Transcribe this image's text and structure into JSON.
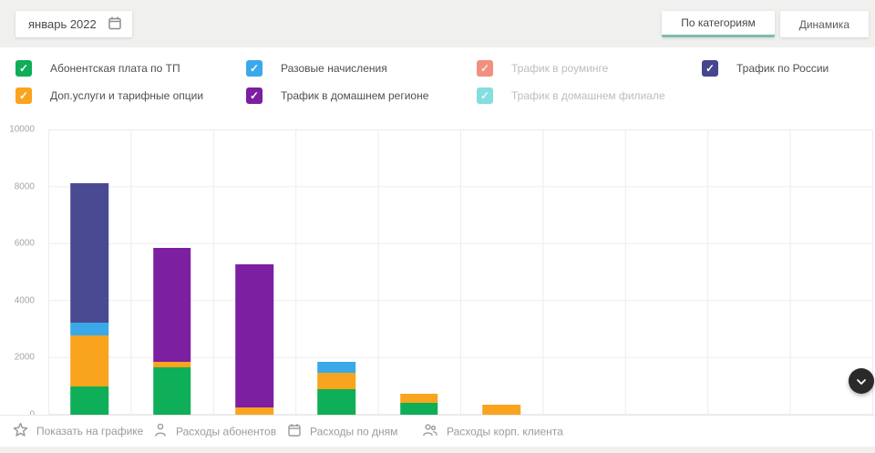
{
  "header": {
    "date_picker": {
      "value": "январь 2022"
    },
    "tabs": [
      {
        "label": "По категориям",
        "active": true
      },
      {
        "label": "Динамика",
        "active": false
      }
    ],
    "active_tab_underline_color": "#7dbcab"
  },
  "legend": {
    "items": [
      {
        "label": "Абонентская плата по ТП",
        "color": "#0fae58",
        "checked": true,
        "disabled": false
      },
      {
        "label": "Разовые начисления",
        "color": "#3aa9e9",
        "checked": true,
        "disabled": false
      },
      {
        "label": "Трафик в роуминге",
        "color": "#f0907e",
        "checked": true,
        "disabled": true
      },
      {
        "label": "Трафик по России",
        "color": "#454590",
        "checked": true,
        "disabled": false
      },
      {
        "label": "Доп.услуги и тарифные опции",
        "color": "#f9a41f",
        "checked": true,
        "disabled": false
      },
      {
        "label": "Трафик в домашнем регионе",
        "color": "#7c1fa0",
        "checked": true,
        "disabled": false
      },
      {
        "label": "Трафик в домашнем филиале",
        "color": "#85dede",
        "checked": true,
        "disabled": true
      }
    ]
  },
  "chart_data": {
    "type": "bar",
    "stacked": true,
    "categories": [
      "",
      "",
      "",
      "",
      "",
      ""
    ],
    "x_labels_visible": false,
    "num_grid_columns": 10,
    "series": [
      {
        "name": "Абонентская плата по ТП",
        "color": "#0fae58",
        "values": [
          1000,
          1660,
          0,
          900,
          430,
          0
        ]
      },
      {
        "name": "Доп.услуги и тарифные опции",
        "color": "#f9a41f",
        "values": [
          1780,
          200,
          270,
          590,
          320,
          340
        ]
      },
      {
        "name": "Разовые начисления",
        "color": "#3aa9e9",
        "values": [
          450,
          0,
          0,
          370,
          0,
          0
        ]
      },
      {
        "name": "Трафик в домашнем регионе",
        "color": "#7c1fa0",
        "values": [
          0,
          4000,
          5010,
          0,
          0,
          0
        ]
      },
      {
        "name": "Трафик по России",
        "color": "#4a4a93",
        "values": [
          4920,
          0,
          0,
          0,
          0,
          0
        ]
      }
    ],
    "totals": [
      8150,
      5860,
      5280,
      1860,
      750,
      340
    ],
    "ylim": [
      0,
      10000
    ],
    "yticks": [
      "10000",
      "8000",
      "6000",
      "4000",
      "2000",
      "0"
    ],
    "grid": true,
    "legend_position": "top"
  },
  "footer": {
    "items": [
      {
        "icon": "star-icon",
        "label": "Показать на графике"
      },
      {
        "icon": "user-icon",
        "label": "Расходы абонентов"
      },
      {
        "icon": "calendar-icon",
        "label": "Расходы по дням"
      },
      {
        "icon": "users-icon",
        "label": "Расходы корп. клиента"
      }
    ]
  },
  "fab": {
    "icon": "chevron-down"
  }
}
